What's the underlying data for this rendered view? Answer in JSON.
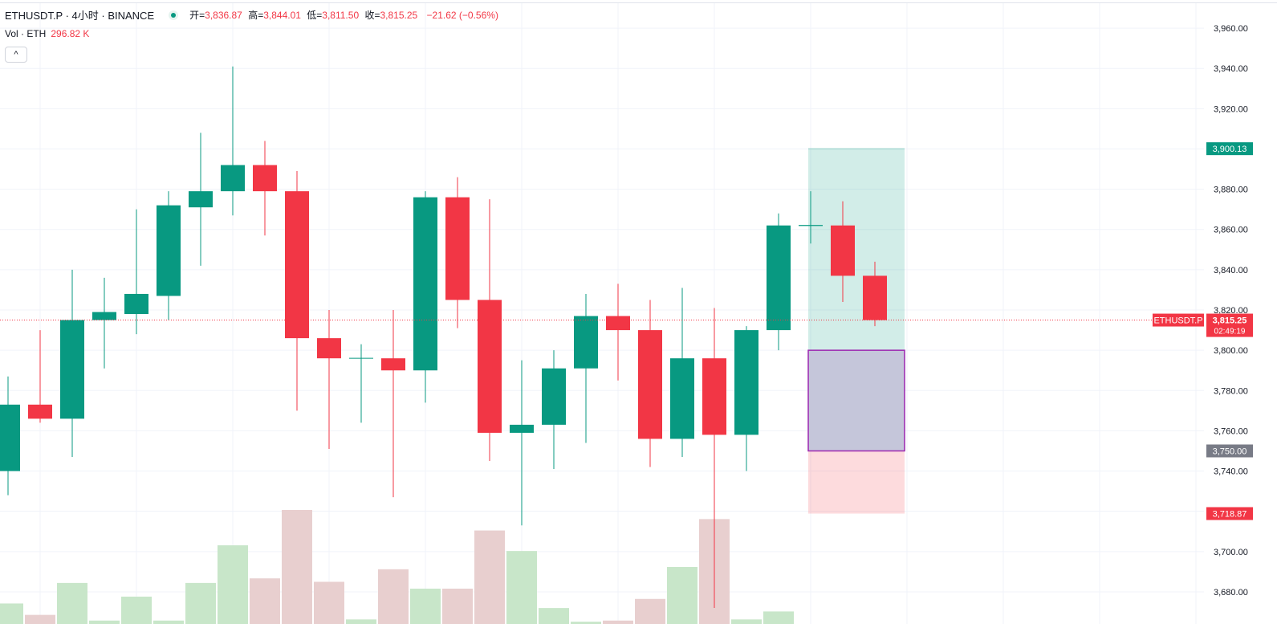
{
  "header": {
    "symbol": "ETHUSDT.P · 4小时 · BINANCE",
    "open_label": "开=",
    "open": "3,836.87",
    "high_label": "高=",
    "high": "3,844.01",
    "low_label": "低=",
    "low": "3,811.50",
    "close_label": "收=",
    "close": "3,815.25",
    "change": "−21.62 (−0.56%)"
  },
  "volume_legend": {
    "label": "Vol · ETH",
    "value": "296.82 K"
  },
  "collapse_button": "^",
  "colors": {
    "up": "#089981",
    "down": "#f23645",
    "vol_up": "#c8e6c9",
    "vol_down": "#e8cfcf",
    "grid": "#f0f3fa"
  },
  "price_tags": {
    "target": {
      "value": "3,900.13",
      "color": "#089981"
    },
    "entry": {
      "value": "3,750.00",
      "color": "#787b86"
    },
    "stop": {
      "value": "3,718.87",
      "color": "#f23645"
    },
    "symbol": {
      "label": "ETHUSDT.P",
      "value": "3,815.25",
      "countdown": "02:49:19",
      "color": "#f23645"
    }
  },
  "chart_data": {
    "type": "candlestick",
    "y_range": [
      3672,
      3972
    ],
    "y_ticks": [
      "3,680.00",
      "3,700.00",
      "3,720.00",
      "3,740.00",
      "3,760.00",
      "3,780.00",
      "3,800.00",
      "3,820.00",
      "3,840.00",
      "3,860.00",
      "3,880.00",
      "3,900.00",
      "3,920.00",
      "3,940.00",
      "3,960.00"
    ],
    "candles": [
      {
        "o": 3740,
        "h": 3787,
        "l": 3728,
        "c": 3773,
        "vol": 0.18
      },
      {
        "o": 3773,
        "h": 3810,
        "l": 3764,
        "c": 3766,
        "vol": 0.08
      },
      {
        "o": 3766,
        "h": 3840,
        "l": 3747,
        "c": 3815,
        "vol": 0.36
      },
      {
        "o": 3815,
        "h": 3836,
        "l": 3791,
        "c": 3819,
        "vol": 0.03
      },
      {
        "o": 3818,
        "h": 3870,
        "l": 3808,
        "c": 3828,
        "vol": 0.24
      },
      {
        "o": 3827,
        "h": 3879,
        "l": 3815,
        "c": 3872,
        "vol": 0.03
      },
      {
        "o": 3871,
        "h": 3908,
        "l": 3842,
        "c": 3879,
        "vol": 0.36
      },
      {
        "o": 3879,
        "h": 3941,
        "l": 3867,
        "c": 3892,
        "vol": 0.69
      },
      {
        "o": 3892,
        "h": 3904,
        "l": 3857,
        "c": 3879,
        "vol": 0.4
      },
      {
        "o": 3879,
        "h": 3889,
        "l": 3770,
        "c": 3806,
        "vol": 1.0
      },
      {
        "o": 3806,
        "h": 3820,
        "l": 3751,
        "c": 3796,
        "vol": 0.37
      },
      {
        "o": 3796,
        "h": 3803,
        "l": 3764,
        "c": 3796,
        "vol": 0.04
      },
      {
        "o": 3796,
        "h": 3820,
        "l": 3727,
        "c": 3790,
        "vol": 0.48
      },
      {
        "o": 3790,
        "h": 3879,
        "l": 3774,
        "c": 3876,
        "vol": 0.31
      },
      {
        "o": 3876,
        "h": 3886,
        "l": 3811,
        "c": 3825,
        "vol": 0.31
      },
      {
        "o": 3825,
        "h": 3875,
        "l": 3745,
        "c": 3759,
        "vol": 0.82
      },
      {
        "o": 3759,
        "h": 3795,
        "l": 3713,
        "c": 3763,
        "vol": 0.64
      },
      {
        "o": 3763,
        "h": 3800,
        "l": 3741,
        "c": 3791,
        "vol": 0.14
      },
      {
        "o": 3791,
        "h": 3828,
        "l": 3754,
        "c": 3817,
        "vol": 0.02
      },
      {
        "o": 3817,
        "h": 3833,
        "l": 3785,
        "c": 3810,
        "vol": 0.03
      },
      {
        "o": 3810,
        "h": 3825,
        "l": 3742,
        "c": 3756,
        "vol": 0.22
      },
      {
        "o": 3756,
        "h": 3831,
        "l": 3747,
        "c": 3796,
        "vol": 0.5
      },
      {
        "o": 3796,
        "h": 3821,
        "l": 3672,
        "c": 3758,
        "vol": 0.92
      },
      {
        "o": 3758,
        "h": 3812,
        "l": 3740,
        "c": 3810,
        "vol": 0.04
      },
      {
        "o": 3810,
        "h": 3868,
        "l": 3800,
        "c": 3862,
        "vol": 0.11
      },
      {
        "o": 3862,
        "h": 3879,
        "l": 3853,
        "c": 3862,
        "vol": 0.0
      },
      {
        "o": 3862,
        "h": 3874,
        "l": 3824,
        "c": 3837,
        "vol": 0.0
      },
      {
        "o": 3837,
        "h": 3844,
        "l": 3812,
        "c": 3815,
        "vol": 0.0
      }
    ],
    "position": {
      "target": 3900.13,
      "entry_top": 3800.0,
      "entry": 3750.0,
      "stop": 3718.87,
      "start_index": 25,
      "end_index": 27
    }
  }
}
